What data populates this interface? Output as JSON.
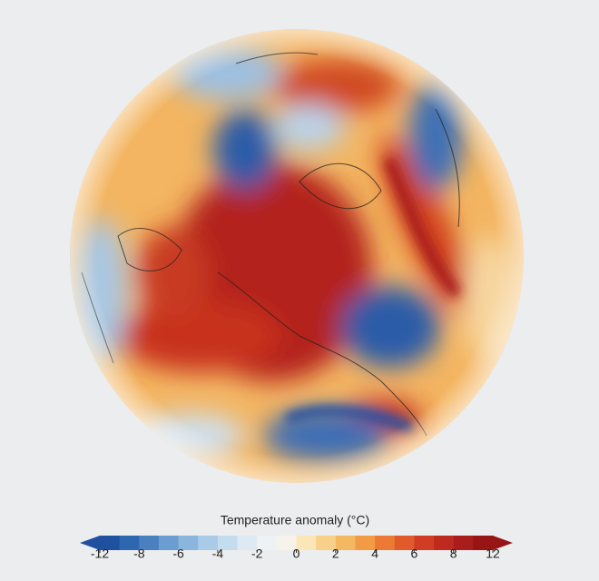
{
  "colorbar": {
    "label": "Temperature anomaly (°C)",
    "ticks": [
      -12,
      -8,
      -6,
      -4,
      -2,
      0,
      2,
      4,
      6,
      8,
      12
    ],
    "colors": [
      "#2050a0",
      "#2f66b0",
      "#4a80c0",
      "#6b9dd0",
      "#8ab6de",
      "#a9cbe8",
      "#c5dcef",
      "#dde9f3",
      "#eef2f4",
      "#f7f3ea",
      "#fbe6b8",
      "#f8d08a",
      "#f5b862",
      "#f29a45",
      "#ec7a35",
      "#e05a2b",
      "#d13d24",
      "#bf2a1f",
      "#a91d1d",
      "#971515"
    ]
  }
}
